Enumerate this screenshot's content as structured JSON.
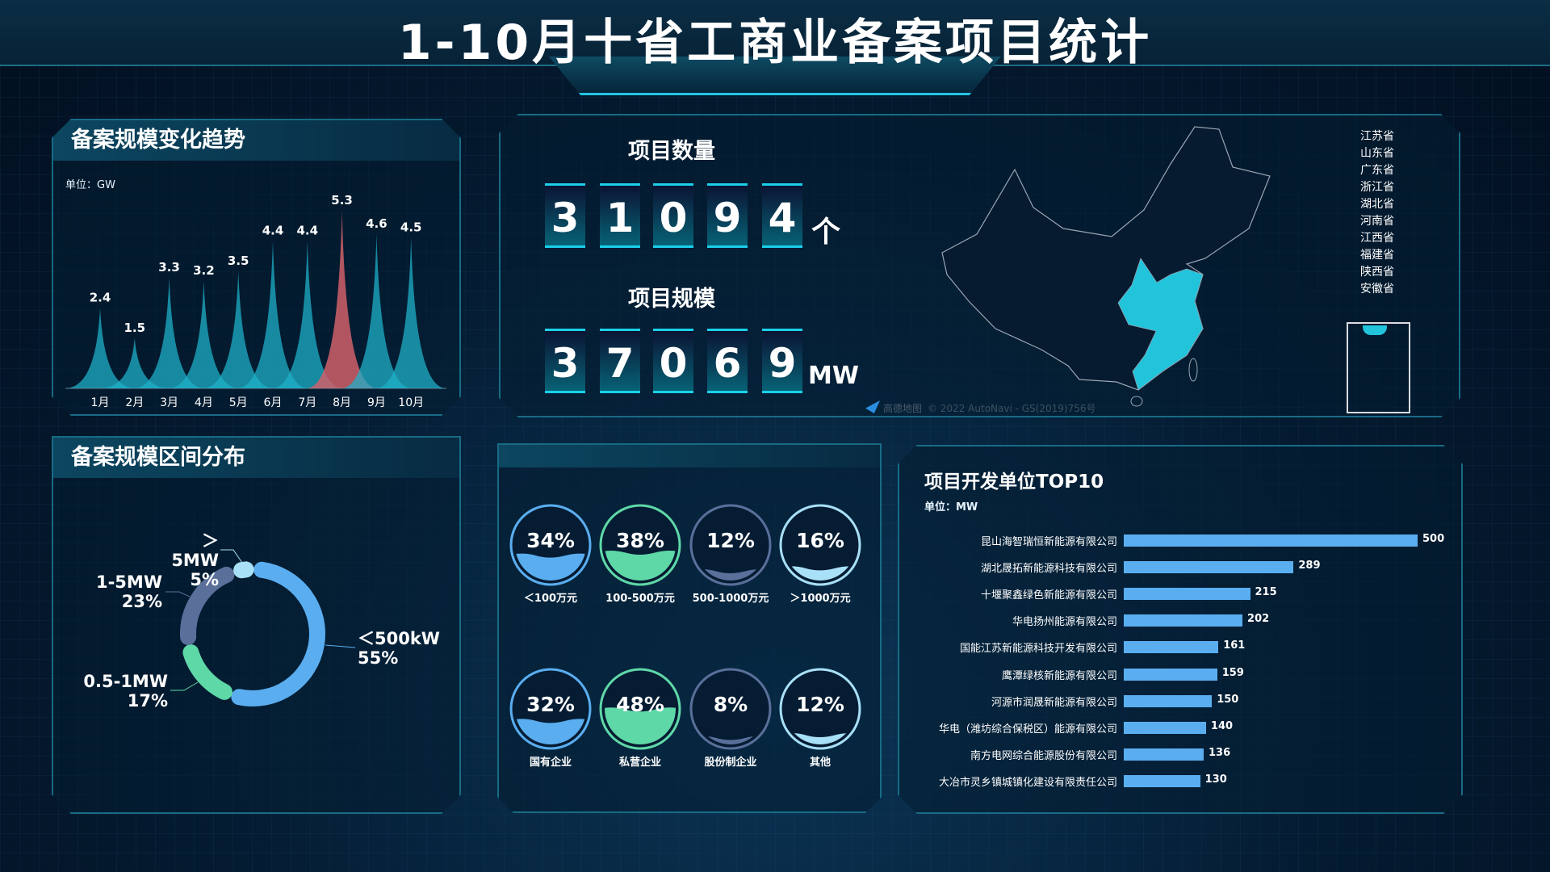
{
  "title": "1-10月十省工商业备案项目统计",
  "trend": {
    "heading": "备案规模变化趋势",
    "unit": "单位：GW"
  },
  "chart_data": {
    "type": "area",
    "categories": [
      "1月",
      "2月",
      "3月",
      "4月",
      "5月",
      "6月",
      "7月",
      "8月",
      "9月",
      "10月"
    ],
    "values": [
      2.4,
      1.5,
      3.3,
      3.2,
      3.5,
      4.4,
      4.4,
      5.3,
      4.6,
      4.5
    ],
    "ylabel": "单位：GW",
    "highlight": "8月",
    "colors": {
      "normal": "#1fb0c8",
      "highlight": "#d0606a"
    }
  },
  "distribution": {
    "heading": "备案规模区间分布",
    "segments": [
      {
        "label": "＜500kW",
        "value": 55,
        "pct": "55%",
        "color": "#5aaef0"
      },
      {
        "label": "0.5-1MW",
        "value": 17,
        "pct": "17%",
        "color": "#5fd8a8"
      },
      {
        "label": "1-5MW",
        "value": 23,
        "pct": "23%",
        "color": "#5a6f9a"
      },
      {
        "label": "＞5MW",
        "value": 5,
        "pct": "5%",
        "color": "#a8e0f8"
      }
    ]
  },
  "counters": {
    "count_label": "项目数量",
    "count_digits": [
      "3",
      "1",
      "0",
      "9",
      "4"
    ],
    "count_unit": "个",
    "scale_label": "项目规模",
    "scale_digits": [
      "3",
      "7",
      "0",
      "6",
      "9"
    ],
    "scale_unit": "MW"
  },
  "map": {
    "legend": [
      "江苏省",
      "山东省",
      "广东省",
      "浙江省",
      "湖北省",
      "河南省",
      "江西省",
      "福建省",
      "陕西省",
      "安徽省"
    ],
    "highlight_color": "#22c4dc",
    "attribution": "© 2022 AutoNavi - GS(2019)756号",
    "logo_text": "高德地图"
  },
  "liquid": [
    [
      {
        "pct": "34%",
        "value": 34,
        "label": "＜100万元",
        "color": "#5aaef0"
      },
      {
        "pct": "38%",
        "value": 38,
        "label": "100-500万元",
        "color": "#5fd8a8"
      },
      {
        "pct": "12%",
        "value": 12,
        "label": "500-1000万元",
        "color": "#5a6f9a"
      },
      {
        "pct": "16%",
        "value": 16,
        "label": "＞1000万元",
        "color": "#a8e0f8"
      }
    ],
    [
      {
        "pct": "32%",
        "value": 32,
        "label": "国有企业",
        "color": "#5aaef0"
      },
      {
        "pct": "48%",
        "value": 48,
        "label": "私营企业",
        "color": "#5fd8a8"
      },
      {
        "pct": "8%",
        "value": 8,
        "label": "股份制企业",
        "color": "#5a6f9a"
      },
      {
        "pct": "12%",
        "value": 12,
        "label": "其他",
        "color": "#a8e0f8"
      }
    ]
  ],
  "top10": {
    "heading": "项目开发单位TOP10",
    "unit": "单位：MW",
    "rows": [
      {
        "name": "昆山海智瑞恒新能源有限公司",
        "value": 500
      },
      {
        "name": "湖北晟拓新能源科技有限公司",
        "value": 289
      },
      {
        "name": "十堰聚鑫绿色新能源有限公司",
        "value": 215
      },
      {
        "name": "华电扬州能源有限公司",
        "value": 202
      },
      {
        "name": "国能江苏新能源科技开发有限公司",
        "value": 161
      },
      {
        "name": "鹰潭绿核新能源有限公司",
        "value": 159
      },
      {
        "name": "河源市润晟新能源有限公司",
        "value": 150
      },
      {
        "name": "华电（潍坊综合保税区）能源有限公司",
        "value": 140
      },
      {
        "name": "南方电网综合能源股份有限公司",
        "value": 136
      },
      {
        "name": "大冶市灵乡镇城镇化建设有限责任公司",
        "value": 130
      }
    ]
  }
}
